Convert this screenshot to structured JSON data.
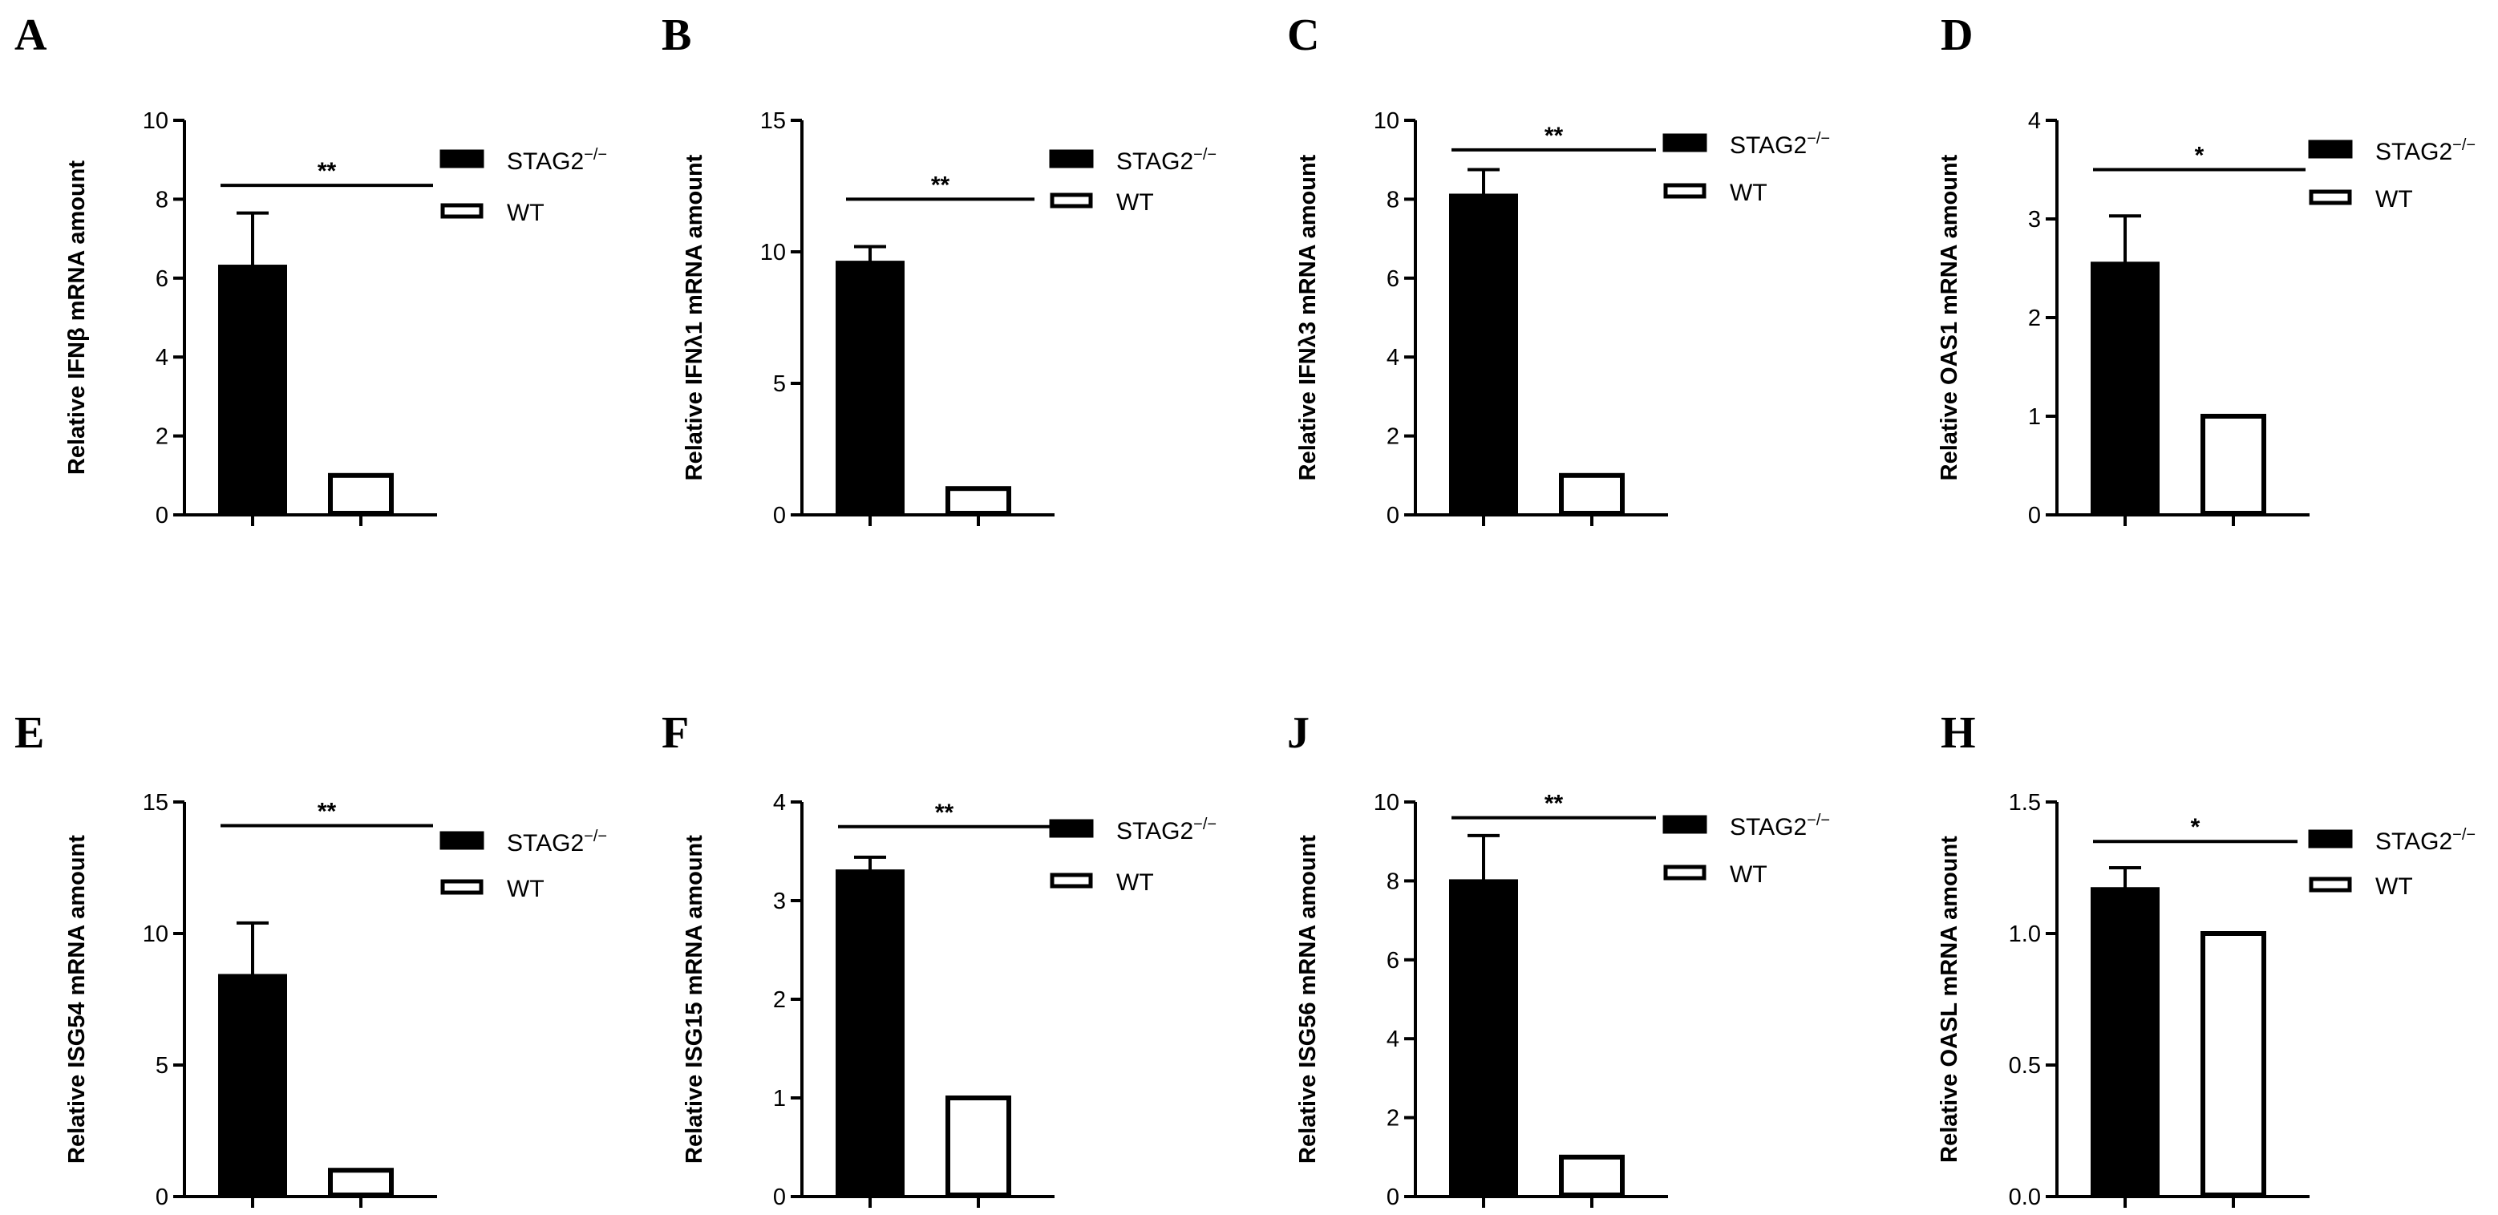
{
  "legend": {
    "ko_base": "STAG2",
    "ko_sup": "−/−",
    "wt": "WT"
  },
  "colors": {
    "ko_fill": "#000000",
    "wt_fill": "#ffffff",
    "stroke": "#000000"
  },
  "chart_data": [
    {
      "panel": "A",
      "type": "bar",
      "categories": [
        "STAG2−/−",
        "WT"
      ],
      "series": [
        {
          "name": "STAG2−/−",
          "values": [
            6.3,
            null
          ]
        },
        {
          "name": "WT",
          "values": [
            null,
            1.0
          ]
        }
      ],
      "error": [
        1.35,
        0
      ],
      "ylabel": "Relative IFNβ mRNA amount",
      "ylim": [
        0,
        10
      ],
      "yticks": [
        0,
        2,
        4,
        6,
        8,
        10
      ],
      "tick_labels": [
        "0",
        "2",
        "4",
        "6",
        "8",
        "10"
      ],
      "significance": "**",
      "sig_y": 8.35
    },
    {
      "panel": "B",
      "type": "bar",
      "categories": [
        "STAG2−/−",
        "WT"
      ],
      "series": [
        {
          "name": "STAG2−/−",
          "values": [
            9.6,
            null
          ]
        },
        {
          "name": "WT",
          "values": [
            null,
            1.0
          ]
        }
      ],
      "error": [
        0.6,
        0
      ],
      "ylabel": "Relative IFNλ1 mRNA amount",
      "ylim": [
        0,
        15
      ],
      "yticks": [
        0,
        5,
        10,
        15
      ],
      "tick_labels": [
        "0",
        "5",
        "10",
        "15"
      ],
      "significance": "**",
      "sig_y": 12.0
    },
    {
      "panel": "C",
      "type": "bar",
      "categories": [
        "STAG2−/−",
        "WT"
      ],
      "series": [
        {
          "name": "STAG2−/−",
          "values": [
            8.1,
            null
          ]
        },
        {
          "name": "WT",
          "values": [
            null,
            1.0
          ]
        }
      ],
      "error": [
        0.65,
        0
      ],
      "ylabel": "Relative IFNλ3 mRNA amount",
      "ylim": [
        0,
        10
      ],
      "yticks": [
        0,
        2,
        4,
        6,
        8,
        10
      ],
      "tick_labels": [
        "0",
        "2",
        "4",
        "6",
        "8",
        "10"
      ],
      "significance": "**",
      "sig_y": 9.25
    },
    {
      "panel": "D",
      "type": "bar",
      "categories": [
        "STAG2−/−",
        "WT"
      ],
      "series": [
        {
          "name": "STAG2−/−",
          "values": [
            2.55,
            null
          ]
        },
        {
          "name": "WT",
          "values": [
            null,
            1.0
          ]
        }
      ],
      "error": [
        0.48,
        0
      ],
      "ylabel": "Relative OAS1 mRNA amount",
      "ylim": [
        0,
        4
      ],
      "yticks": [
        0,
        1,
        2,
        3,
        4
      ],
      "tick_labels": [
        "0",
        "1",
        "2",
        "3",
        "4"
      ],
      "significance": "*",
      "sig_y": 3.5
    },
    {
      "panel": "E",
      "type": "bar",
      "categories": [
        "STAG2−/−",
        "WT"
      ],
      "series": [
        {
          "name": "STAG2−/−",
          "values": [
            8.4,
            null
          ]
        },
        {
          "name": "WT",
          "values": [
            null,
            1.0
          ]
        }
      ],
      "error": [
        2.0,
        0
      ],
      "ylabel": "Relative ISG54 mRNA amount",
      "ylim": [
        0,
        15
      ],
      "yticks": [
        0,
        5,
        10,
        15
      ],
      "tick_labels": [
        "0",
        "5",
        "10",
        "15"
      ],
      "significance": "**",
      "sig_y": 14.1
    },
    {
      "panel": "F",
      "type": "bar",
      "categories": [
        "STAG2−/−",
        "WT"
      ],
      "series": [
        {
          "name": "STAG2−/−",
          "values": [
            3.3,
            null
          ]
        },
        {
          "name": "WT",
          "values": [
            null,
            1.0
          ]
        }
      ],
      "error": [
        0.14,
        0
      ],
      "ylabel": "Relative ISG15 mRNA amount",
      "ylim": [
        0,
        4
      ],
      "yticks": [
        0,
        1,
        2,
        3,
        4
      ],
      "tick_labels": [
        "0",
        "1",
        "2",
        "3",
        "4"
      ],
      "significance": "**",
      "sig_y": 3.75
    },
    {
      "panel": "J",
      "type": "bar",
      "categories": [
        "STAG2−/−",
        "WT"
      ],
      "series": [
        {
          "name": "STAG2−/−",
          "values": [
            8.0,
            null
          ]
        },
        {
          "name": "WT",
          "values": [
            null,
            1.0
          ]
        }
      ],
      "error": [
        1.15,
        0
      ],
      "ylabel": "Relative ISG56 mRNA amount",
      "ylim": [
        0,
        10
      ],
      "yticks": [
        0,
        2,
        4,
        6,
        8,
        10
      ],
      "tick_labels": [
        "0",
        "2",
        "4",
        "6",
        "8",
        "10"
      ],
      "significance": "**",
      "sig_y": 9.6
    },
    {
      "panel": "H",
      "type": "bar",
      "categories": [
        "STAG2−/−",
        "WT"
      ],
      "series": [
        {
          "name": "STAG2−/−",
          "values": [
            1.17,
            null
          ]
        },
        {
          "name": "WT",
          "values": [
            null,
            1.0
          ]
        }
      ],
      "error": [
        0.08,
        0
      ],
      "ylabel": "Relative OASL mRNA amount",
      "ylim": [
        0,
        1.5
      ],
      "yticks": [
        0,
        0.5,
        1.0,
        1.5
      ],
      "tick_labels": [
        "0.0",
        "0.5",
        "1.0",
        "1.5"
      ],
      "significance": "*",
      "sig_y": 1.35
    }
  ]
}
